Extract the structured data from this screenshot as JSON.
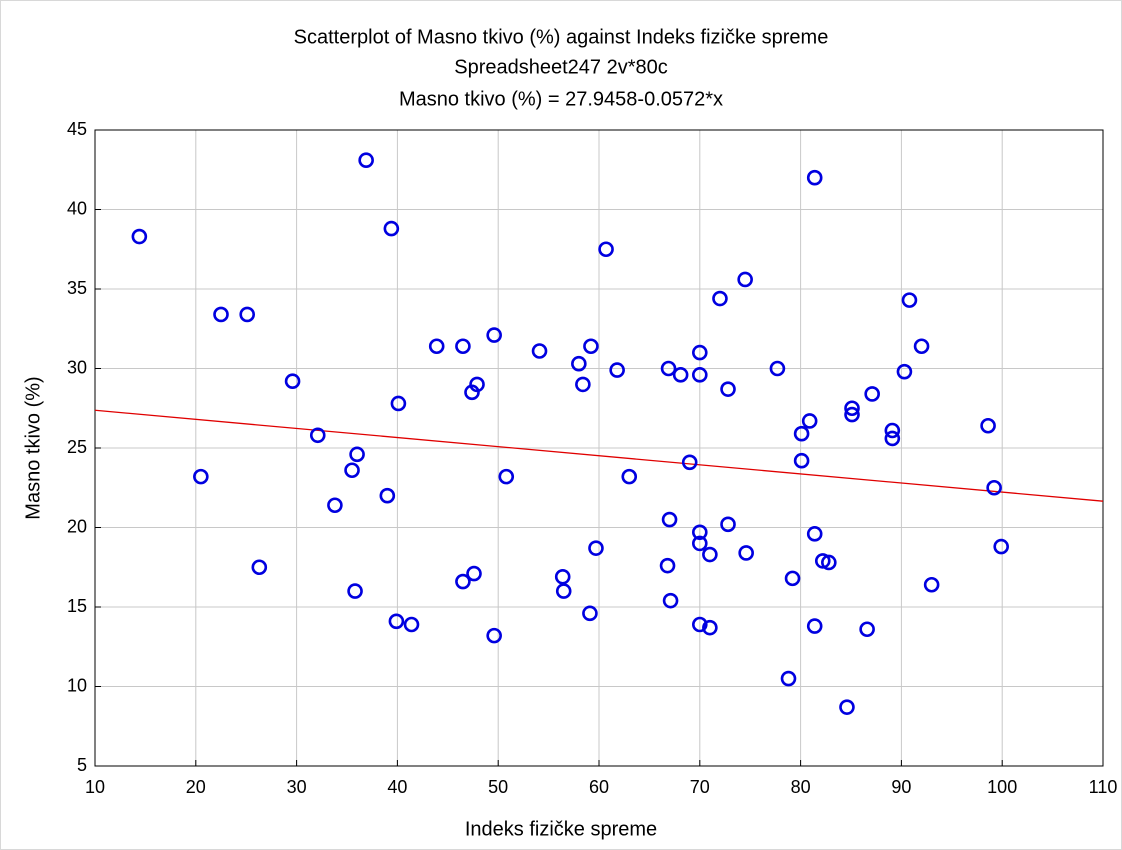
{
  "chart_data": {
    "type": "scatter",
    "title": "Scatterplot of Masno tkivo (%) against Indeks fizičke spreme",
    "subtitle": [
      "Spreadsheet247 2v*80c",
      "Masno tkivo (%) = 27.9458-0.0572*x"
    ],
    "x_label": "Indeks fizičke spreme",
    "y_label": "Masno tkivo (%)",
    "xlim": [
      10,
      110
    ],
    "xticks": [
      10,
      20,
      30,
      40,
      50,
      60,
      70,
      80,
      90,
      100,
      110
    ],
    "ylim": [
      5,
      45
    ],
    "yticks": [
      5,
      10,
      15,
      20,
      25,
      30,
      35,
      40,
      45
    ],
    "grid": true,
    "fit": {
      "intercept": 27.9458,
      "slope": -0.0572,
      "color": "#e00000"
    },
    "series": [
      {
        "color": "#0000e0",
        "x": [
          14.4,
          20.5,
          22.5,
          25.1,
          26.3,
          29.6,
          32.1,
          33.8,
          35.5,
          36.0,
          35.8,
          36.9,
          39.0,
          39.4,
          40.1,
          39.9,
          41.4,
          43.9,
          46.5,
          46.5,
          47.4,
          47.9,
          47.6,
          49.6,
          49.6,
          50.8,
          54.1,
          56.4,
          56.5,
          58.0,
          58.4,
          59.2,
          59.1,
          59.7,
          60.7,
          61.8,
          63.0,
          66.9,
          68.1,
          67.0,
          66.8,
          67.1,
          69.0,
          70.0,
          70.0,
          70.0,
          70.0,
          70.0,
          71.0,
          71.0,
          72.0,
          72.8,
          72.8,
          74.5,
          74.6,
          77.7,
          78.8,
          79.2,
          80.1,
          80.1,
          80.9,
          81.4,
          81.4,
          81.4,
          82.2,
          82.8,
          84.6,
          85.1,
          85.1,
          87.1,
          86.6,
          89.1,
          89.1,
          90.3,
          90.8,
          92.0,
          93.0,
          98.6,
          99.2,
          99.9
        ],
        "values": [
          38.3,
          23.2,
          33.4,
          33.4,
          17.5,
          29.2,
          25.8,
          21.4,
          23.6,
          24.6,
          16.0,
          43.1,
          22.0,
          38.8,
          27.8,
          14.1,
          13.9,
          31.4,
          31.4,
          16.6,
          28.5,
          29.0,
          17.1,
          32.1,
          13.2,
          23.2,
          31.1,
          16.9,
          16.0,
          30.3,
          29.0,
          31.4,
          14.6,
          18.7,
          37.5,
          29.9,
          23.2,
          30.0,
          29.6,
          20.5,
          17.6,
          15.4,
          24.1,
          31.0,
          29.6,
          19.7,
          19.0,
          13.9,
          13.7,
          18.3,
          34.4,
          28.7,
          20.2,
          35.6,
          18.4,
          30.0,
          10.5,
          16.8,
          25.9,
          24.2,
          26.7,
          42.0,
          19.6,
          13.8,
          17.9,
          17.8,
          8.7,
          27.5,
          27.1,
          28.4,
          13.6,
          26.1,
          25.6,
          29.8,
          34.3,
          31.4,
          16.4,
          26.4,
          22.5,
          18.8
        ]
      }
    ]
  }
}
